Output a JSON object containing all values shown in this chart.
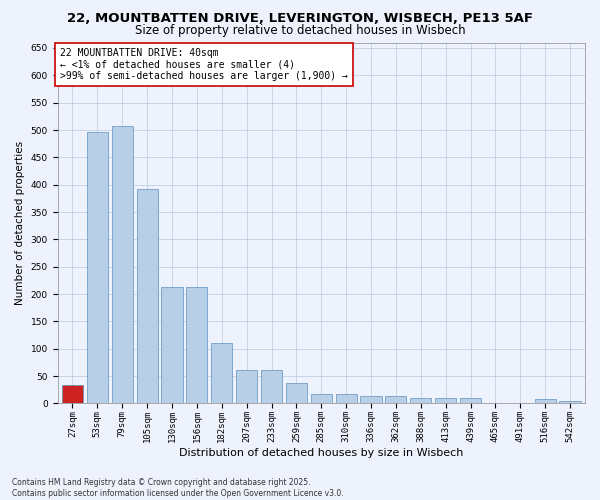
{
  "title1": "22, MOUNTBATTEN DRIVE, LEVERINGTON, WISBECH, PE13 5AF",
  "title2": "Size of property relative to detached houses in Wisbech",
  "xlabel": "Distribution of detached houses by size in Wisbech",
  "ylabel": "Number of detached properties",
  "categories": [
    "27sqm",
    "53sqm",
    "79sqm",
    "105sqm",
    "130sqm",
    "156sqm",
    "182sqm",
    "207sqm",
    "233sqm",
    "259sqm",
    "285sqm",
    "310sqm",
    "336sqm",
    "362sqm",
    "388sqm",
    "413sqm",
    "439sqm",
    "465sqm",
    "491sqm",
    "516sqm",
    "542sqm"
  ],
  "values": [
    33,
    497,
    507,
    393,
    213,
    213,
    111,
    62,
    62,
    38,
    18,
    18,
    13,
    13,
    10,
    10,
    10,
    1,
    1,
    8,
    5
  ],
  "bar_color": "#b8cfe8",
  "bar_edge_color": "#6090c0",
  "highlight_bar_index": 0,
  "highlight_bar_color": "#cc2222",
  "annotation_text": "22 MOUNTBATTEN DRIVE: 40sqm\n← <1% of detached houses are smaller (4)\n>99% of semi-detached houses are larger (1,900) →",
  "annotation_box_color": "#ffffff",
  "annotation_box_edge_color": "#cc0000",
  "ylim": [
    0,
    660
  ],
  "yticks": [
    0,
    50,
    100,
    150,
    200,
    250,
    300,
    350,
    400,
    450,
    500,
    550,
    600,
    650
  ],
  "background_color": "#eef2fc",
  "plot_bg_color": "#eef2fc",
  "footer_text": "Contains HM Land Registry data © Crown copyright and database right 2025.\nContains public sector information licensed under the Open Government Licence v3.0.",
  "title1_fontsize": 9.5,
  "title2_fontsize": 8.5,
  "xlabel_fontsize": 8,
  "ylabel_fontsize": 7.5,
  "tick_fontsize": 6.5,
  "annotation_fontsize": 7,
  "footer_fontsize": 5.5
}
